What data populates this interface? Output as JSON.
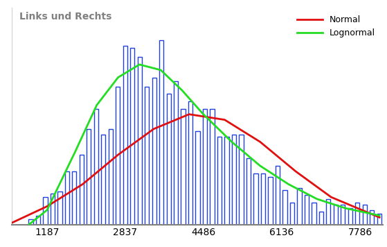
{
  "chart_data": {
    "type": "histogram",
    "title": "Links und Rechts",
    "bins": [
      767,
      920,
      1073,
      1226,
      1379,
      1532,
      1685,
      1838,
      1991,
      2144,
      2297,
      2450,
      2603,
      2756,
      2909,
      3062,
      3215,
      3368,
      3521,
      3674,
      3827,
      3980,
      4133,
      4286,
      4439,
      4592,
      4745,
      4898,
      5051,
      5204,
      5357,
      5510,
      5663,
      5816,
      5969,
      6122,
      6275,
      6428,
      6581,
      6734,
      6887,
      7040,
      7193,
      7346,
      7499,
      7652,
      7805,
      7958,
      8111,
      8264
    ],
    "counts": [
      3,
      5,
      15,
      17,
      18,
      29,
      29,
      38,
      52,
      63,
      49,
      52,
      75,
      97,
      96,
      91,
      75,
      80,
      100,
      71,
      78,
      63,
      67,
      51,
      63,
      63,
      48,
      48,
      49,
      49,
      36,
      28,
      28,
      26,
      32,
      19,
      12,
      20,
      16,
      12,
      7,
      14,
      11,
      11,
      9,
      12,
      11,
      8,
      6
    ],
    "color": "#2040e0",
    "series": [
      {
        "name": "Normal",
        "color": "#e01010",
        "type": "line",
        "x": [
          440,
          1187,
          1936,
          2684,
          3433,
          4181,
          4930,
          5678,
          6427,
          7175,
          8193
        ],
        "values": [
          1,
          10,
          22,
          38,
          52,
          60,
          57,
          45,
          29,
          15,
          4
        ]
      },
      {
        "name": "Lognormal",
        "color": "#22dd22",
        "type": "line",
        "x": [
          800,
          1187,
          1786,
          2235,
          2684,
          3134,
          3583,
          4032,
          4481,
          5080,
          5678,
          6277,
          6876,
          7475,
          8193
        ],
        "values": [
          0,
          8,
          40,
          65,
          80,
          87,
          84,
          73,
          60,
          45,
          32,
          22,
          14,
          9,
          5
        ]
      }
    ],
    "xlim": [
      440,
      8270
    ],
    "xticks": [
      1187,
      2837,
      4486,
      6136,
      7786
    ],
    "ylim": [
      0,
      118
    ],
    "yticks": [],
    "tick_labels": "x",
    "legend": "upper right",
    "grid": false
  }
}
